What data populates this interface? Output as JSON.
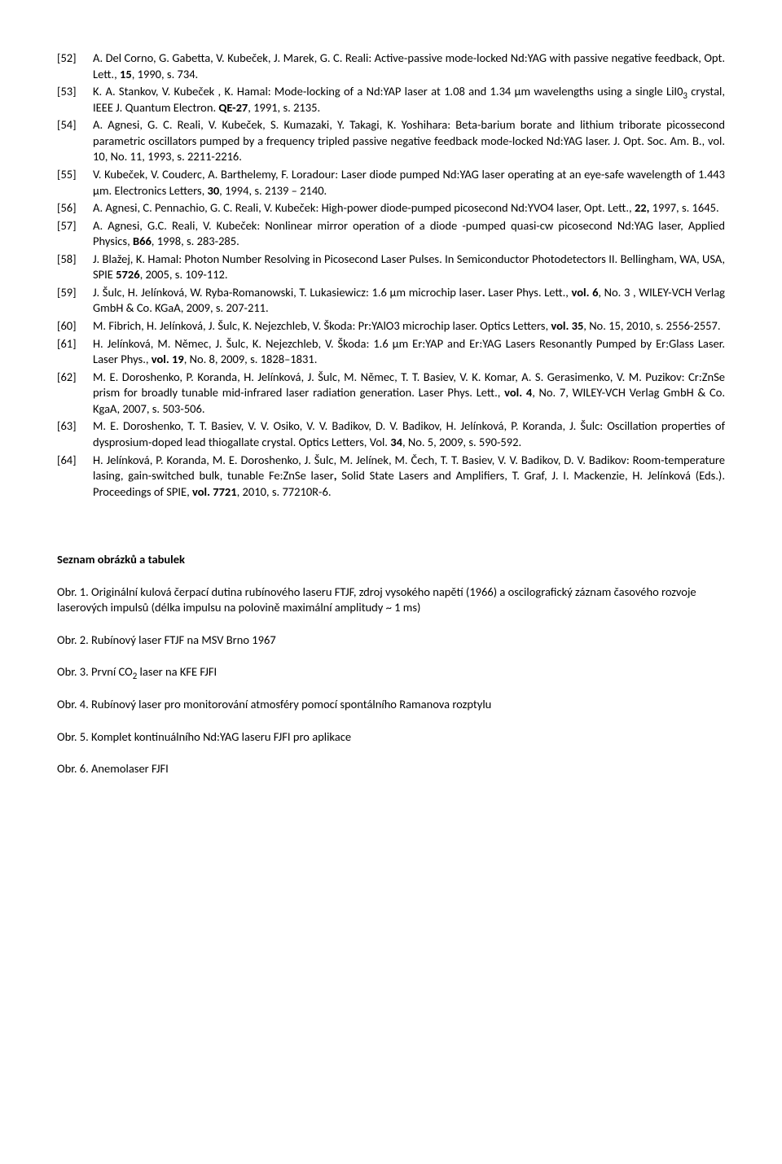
{
  "references": [
    {
      "num": "[52]",
      "html": "A. Del Corno, G. Gabetta, V. Kubeček, J. Marek, G. C. Reali: Active-passive mode-locked Nd:YAG with passive negative feedback, Opt. Lett., <b>15</b>, 1990, s. 734."
    },
    {
      "num": "[53]",
      "html": "K. A. Stankov, V. Kubeček , K. Hamal: Mode-locking of a Nd:YAP laser at 1.08 and 1.34 μm wavelengths using a single LiI0<sub>3</sub> crystal, IEEE J. Quantum Electron. <b>QE-27</b>, 1991, s. 2135."
    },
    {
      "num": "[54]",
      "html": "A. Agnesi, G. C. Reali, V. Kubeček, S. Kumazaki, Y. Takagi, K. Yoshihara: Beta-barium borate and lithium triborate picossecond parametric oscillators pumped by a frequency tripled passive negative feedback mode-locked Nd:YAG laser. J. Opt. Soc. Am. B., vol. 10, No. 11, 1993, s. 2211-2216."
    },
    {
      "num": "[55]",
      "html": "V. Kubeček, V. Couderc, A. Barthelemy, F. Loradour: Laser diode pumped Nd:YAG laser operating at an eye-safe wavelength of 1.443 μm. Electronics Letters, <b>30</b>, 1994, s. 2139 – 2140."
    },
    {
      "num": "[56]",
      "html": "A. Agnesi, C. Pennachio, G. C. Reali, V. Kubeček: High-power diode-pumped picosecond Nd:YVO4 laser, Opt. Lett., <b>22,</b> 1997, s. 1645."
    },
    {
      "num": "[57]",
      "html": "A. Agnesi, G.C. Reali, V. Kubeček: Nonlinear mirror operation of a diode -pumped quasi-cw picosecond Nd:YAG laser, Applied Physics, <b>B66</b>, 1998, s. 283-285."
    },
    {
      "num": "[58]",
      "html": "J. Blažej, K. Hamal: Photon Number Resolving in Picosecond Laser Pulses. In Semiconductor Photodetectors II. Bellingham, WA, USA, SPIE <b>5726</b>, 2005, s. 109-112."
    },
    {
      "num": "[59]",
      "html": "J. Šulc, H. Jelínková, W. Ryba-Romanowski, T. Lukasiewicz: 1.6 μm microchip laser<b>.</b> Laser Phys. Lett., <b>vol. 6</b>, No. 3 , WILEY-VCH Verlag GmbH & Co. KGaA, 2009, s. 207-211."
    },
    {
      "num": "[60]",
      "html": "M. Fibrich, H. Jelínková, J. Šulc, K. Nejezchleb, V. Škoda: Pr:YAlO3 microchip laser. Optics Letters, <b>vol. 35</b>, No. 15, 2010, s. 2556-2557."
    },
    {
      "num": "[61]",
      "html": "H. Jelínková, M. Němec, J. Šulc, K. Nejezchleb, V. Škoda: 1.6 μm Er:YAP and Er:YAG Lasers Resonantly Pumped by Er:Glass Laser. Laser Phys., <b>vol. 19</b>, No. 8, 2009, s. 1828–1831."
    },
    {
      "num": "[62]",
      "html": "M. E. Doroshenko, P. Koranda, H. Jelínková, J. Šulc, M. Němec, T. T. Basiev, V. K. Komar, A. S. Gerasimenko, V. M. Puzikov: Cr:ZnSe prism for broadly tunable mid-infrared laser radiation generation. Laser Phys. Lett., <b>vol. 4</b>, No. 7, WILEY-VCH Verlag GmbH & Co. KgaA, 2007, s. 503-506."
    },
    {
      "num": "[63]",
      "html": "M. E. Doroshenko, T. T. Basiev, V. V. Osiko, V. V. Badikov, D. V. Badikov, H. Jelínková, P. Koranda, J. Šulc: Oscillation properties of dysprosium-doped lead thiogallate crystal. Optics Letters, Vol. <b>34</b>, No. 5, 2009, s. 590-592."
    },
    {
      "num": "[64]",
      "html": "H. Jelínková, P. Koranda, M. E. Doroshenko, J. Šulc, M. Jelínek, M. Čech, T. T. Basiev, V. V. Badikov, D. V. Badikov: Room-temperature lasing, gain-switched bulk, tunable Fe:ZnSe laser<b>,</b> Solid State Lasers and Amplifiers, T. Graf, J. I. Mackenzie, H. Jelínková (Eds.). Proceedings of SPIE, <b>vol. 7721</b>, 2010, s. 77210R-6."
    }
  ],
  "figures_heading": "Seznam obrázků a tabulek",
  "figures": [
    {
      "html": "Obr. 1. Originální kulová čerpací dutina rubínového laseru FTJF, zdroj vysokého napětí (1966) a oscilografický záznam časového rozvoje laserových impulsů (délka impulsu na polovině maximální amplitudy ~ 1 ms)"
    },
    {
      "html": "Obr. 2. Rubínový laser FTJF na MSV Brno 1967"
    },
    {
      "html": "Obr. 3. První CO<sub>2</sub> laser na KFE FJFI"
    },
    {
      "html": "Obr. 4. Rubínový laser pro monitorování atmosféry pomocí spontálního Ramanova rozptylu"
    },
    {
      "html": "Obr. 5. Komplet kontinuálního Nd:YAG laseru FJFI pro aplikace"
    },
    {
      "html": "Obr. 6. Anemolaser FJFI"
    }
  ]
}
